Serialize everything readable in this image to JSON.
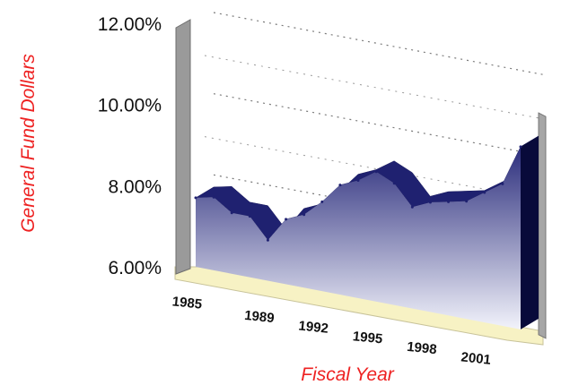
{
  "chart_data": {
    "type": "area",
    "xlabel": "Fiscal Year",
    "ylabel": "General Fund Dollars",
    "ylim": [
      6.0,
      12.0
    ],
    "yticks": [
      "6.00%",
      "8.00%",
      "10.00%",
      "12.00%"
    ],
    "xtick_labels": [
      "1985",
      "1989",
      "1992",
      "1995",
      "1998",
      "2001"
    ],
    "x": [
      1985,
      1986,
      1987,
      1988,
      1989,
      1990,
      1991,
      1992,
      1993,
      1994,
      1995,
      1996,
      1997,
      1998,
      1999,
      2000,
      2001,
      2002,
      2003
    ],
    "series": [
      {
        "values": [
          7.7,
          7.8,
          7.5,
          7.5,
          7.0,
          7.6,
          7.8,
          8.2,
          8.7,
          8.9,
          9.2,
          9.0,
          8.5,
          8.7,
          8.8,
          8.9,
          9.2,
          9.5,
          10.5
        ]
      }
    ],
    "grid": true,
    "colors": {
      "area": "#2b2d7c",
      "area_light": "#e6e7f5",
      "floor": "#f7f2c4",
      "wall": "#9a9a9a",
      "axis_title": "#ee2222"
    }
  }
}
